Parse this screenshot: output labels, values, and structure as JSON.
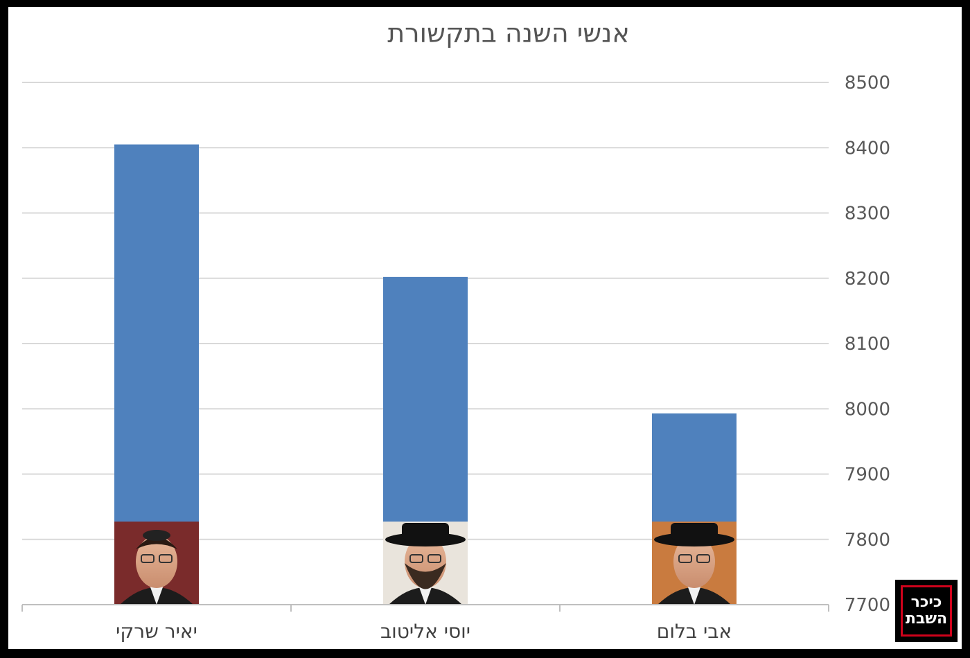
{
  "chart_data": {
    "type": "bar",
    "title": "אנשי השנה בתקשורת",
    "categories": [
      "יאיר שרקי",
      "יוסי אליטוב",
      "אבי בלום"
    ],
    "values": [
      8405,
      8202,
      7993
    ],
    "ylim": [
      7700,
      8500
    ],
    "yticks": [
      7700,
      7800,
      7900,
      8000,
      8100,
      8200,
      8300,
      8400,
      8500
    ],
    "y_axis_side": "right",
    "grid": true,
    "bar_color": "#4f81bd",
    "photos_at_bar_base": true
  },
  "logo": {
    "text": "כיכר השבת",
    "border_color": "#d0021b"
  }
}
